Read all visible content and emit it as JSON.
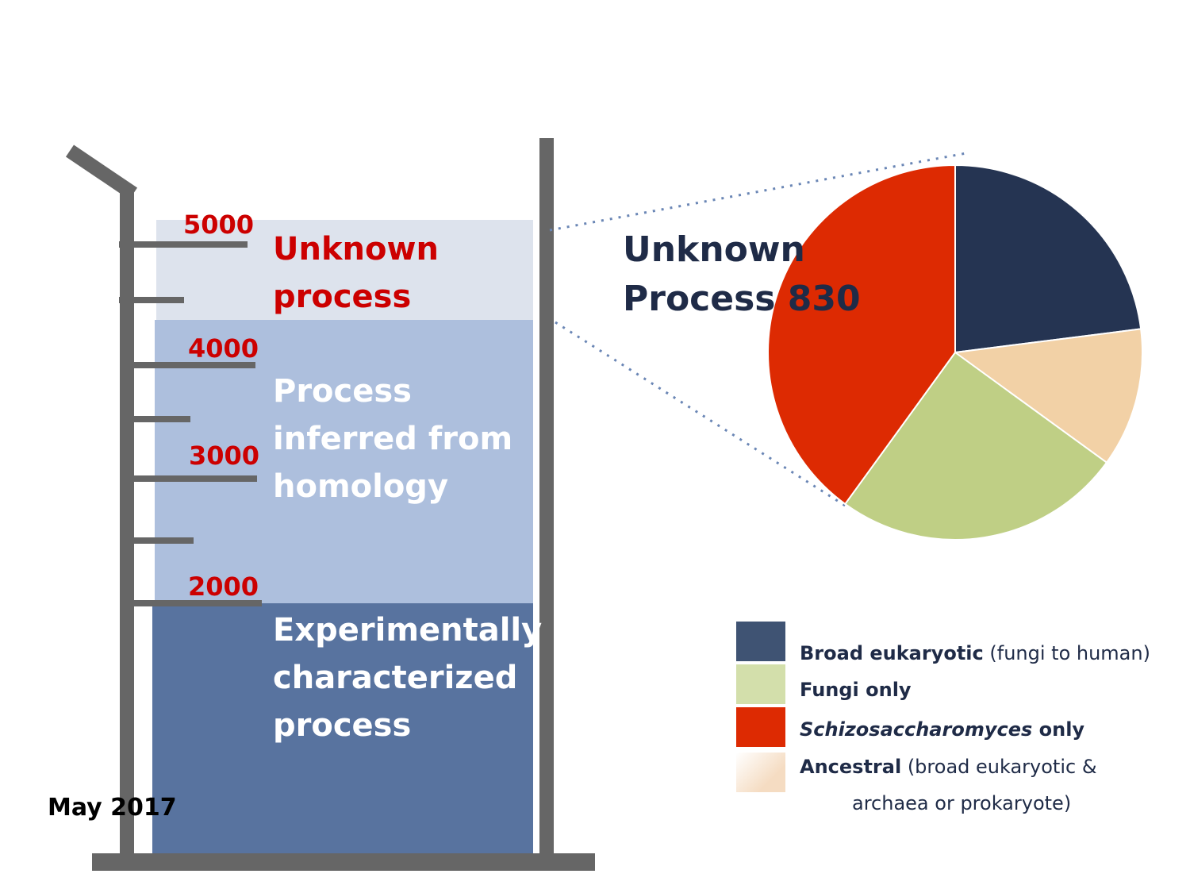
{
  "cylinder": {
    "scale_labels": [
      "5000",
      "4000",
      "3000",
      "2000"
    ],
    "segments": [
      {
        "lines": [
          "Unknown",
          "process"
        ],
        "color": "#dde3ed",
        "text_color": "#cc0000"
      },
      {
        "lines": [
          "Process",
          "inferred from",
          "homology"
        ],
        "color": "#adbfdd",
        "text_color": "#ffffff"
      },
      {
        "lines": [
          "Experimentally",
          "characterized",
          "process"
        ],
        "color": "#58739f",
        "text_color": "#ffffff"
      }
    ],
    "date": "May 2017"
  },
  "pie": {
    "title_lines": [
      "Unknown",
      "Process  830"
    ]
  },
  "chart_data": {
    "type": "pie",
    "categories": [
      "Broad eukaryotic",
      "Ancestral",
      "Fungi only",
      "Schizosaccharomyces only"
    ],
    "values": [
      23,
      12,
      25,
      40
    ],
    "colors": [
      "#253452",
      "#f2d1a6",
      "#bfcf85",
      "#dd2a02"
    ]
  },
  "legend": {
    "items": [
      {
        "bold": "Broad eukaryotic",
        "normal": " (fungi to human)",
        "italic": false,
        "color": "#3f5373"
      },
      {
        "bold": "Fungi only",
        "normal": "",
        "italic": false,
        "color": "#d3dfab"
      },
      {
        "bold": "Schizosaccharomyces",
        "normal": " only",
        "italic": true,
        "color": "#dd2a02"
      },
      {
        "bold": "Ancestral",
        "normal": " (broad eukaryotic &",
        "italic": false,
        "color": "#f5dcc2"
      }
    ],
    "continuation": "archaea or prokaryote)"
  }
}
